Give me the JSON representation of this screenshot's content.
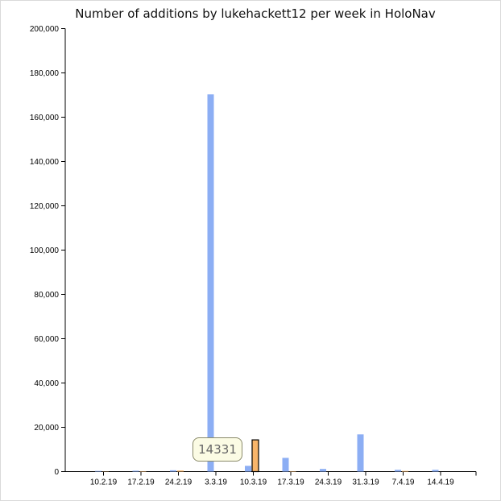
{
  "chart_data": {
    "type": "bar",
    "title": "Number of additions by lukehackett12 per week in HoloNav",
    "categories": [
      "10.2.19",
      "17.2.19",
      "24.2.19",
      "3.3.19",
      "10.3.19",
      "17.3.19",
      "24.3.19",
      "31.3.19",
      "7.4.19",
      "14.4.19"
    ],
    "series": [
      {
        "values": [
          300,
          400,
          600,
          170300,
          2600,
          6200,
          1200,
          16800,
          800,
          800
        ],
        "color": "#8caef4"
      },
      {
        "values": [
          100,
          200,
          500,
          0,
          14331,
          200,
          0,
          0,
          300,
          0
        ],
        "color": "#f8b56a"
      }
    ],
    "ylim": [
      0,
      200000
    ],
    "yticks": [
      0,
      20000,
      40000,
      60000,
      80000,
      100000,
      120000,
      140000,
      160000,
      180000,
      200000
    ],
    "ytick_labels": [
      "0",
      "20,000",
      "40,000",
      "60,000",
      "80,000",
      "100,000",
      "120,000",
      "140,000",
      "160,000",
      "180,000",
      "200,000"
    ],
    "xlabel": "",
    "ylabel": "",
    "grid": false,
    "highlight": {
      "category": "10.3.19",
      "series": 1
    },
    "tooltip": "14331"
  }
}
